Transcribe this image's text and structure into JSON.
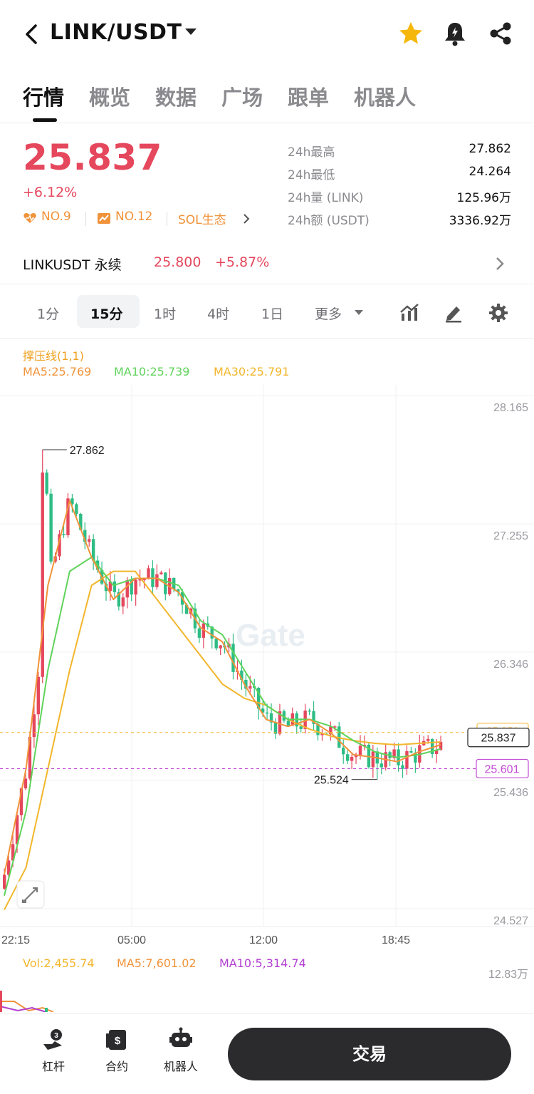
{
  "header": {
    "pair": "LINK/USDT",
    "icons": [
      "back-icon",
      "caret-down-icon",
      "star-icon",
      "alert-bell-icon",
      "share-icon"
    ],
    "favorite_color": "#f5b70a"
  },
  "tabs": [
    "行情",
    "概览",
    "数据",
    "广场",
    "跟单",
    "机器人"
  ],
  "ticker": {
    "price": "25.837",
    "change": "+6.12%",
    "rank1": "NO.9",
    "rank2": "NO.12",
    "ecosystem": "SOL生态",
    "stats": [
      {
        "label": "24h最高",
        "value": "27.862"
      },
      {
        "label": "24h最低",
        "value": "24.264"
      },
      {
        "label": "24h量 (LINK)",
        "value": "125.96万"
      },
      {
        "label": "24h额 (USDT)",
        "value": "3336.92万"
      }
    ]
  },
  "perpetual": {
    "name": "LINKUSDT 永续",
    "price": "25.800",
    "change": "+5.87%"
  },
  "intervals": {
    "items": [
      "1分",
      "15分",
      "1时",
      "4时",
      "1日",
      "更多"
    ],
    "active": "15分",
    "tools": [
      "indicator-icon",
      "draw-icon",
      "settings-icon"
    ]
  },
  "legend": {
    "indicator": "撑压线(1,1)",
    "ma5": "MA5:25.769",
    "ma10": "MA10:25.739",
    "ma30": "MA30:25.791"
  },
  "colors": {
    "up": "#e5475d",
    "down": "#2ebd85",
    "ma5": "#f0933a",
    "ma10": "#5fd35a",
    "ma30": "#f2b62b",
    "support": "#c24ad4",
    "watermark_text": "Gate"
  },
  "chart_data": {
    "type": "candlestick",
    "y_axis_labels": [
      "28.165",
      "27.255",
      "26.346",
      "25.436",
      "24.527"
    ],
    "ylim": [
      24.527,
      28.165
    ],
    "x_axis_labels": [
      "22:15",
      "05:00",
      "12:00",
      "18:45"
    ],
    "annotations": {
      "high": "27.862",
      "low": "25.524",
      "current_price": "25.837",
      "support_line": "25.601",
      "resistance_label_partial": "25.850"
    },
    "ma_series": {
      "ma5": [
        24.85,
        25.6,
        26.9,
        27.5,
        27.1,
        26.8,
        26.95,
        26.95,
        26.85,
        26.6,
        26.5,
        26.2,
        25.95,
        25.9,
        25.95,
        25.85,
        25.7,
        25.68,
        25.65,
        25.72,
        25.77
      ],
      "ma10": [
        24.7,
        25.3,
        26.3,
        27.0,
        27.1,
        26.9,
        26.95,
        26.95,
        26.9,
        26.65,
        26.55,
        26.3,
        26.05,
        25.95,
        25.95,
        25.9,
        25.8,
        25.72,
        25.68,
        25.7,
        25.74
      ],
      "ma30": [
        24.6,
        24.9,
        25.6,
        26.3,
        26.9,
        27.0,
        27.0,
        26.8,
        26.6,
        26.4,
        26.2,
        26.1,
        26.05,
        25.95,
        25.88,
        25.83,
        25.8,
        25.78,
        25.77,
        25.78,
        25.79
      ]
    },
    "volume": {
      "y_label": "12.83万",
      "vol": "Vol:2,455.74",
      "ma5": "MA5:7,601.02",
      "ma10": "MA10:5,314.74"
    }
  },
  "bottom_nav": {
    "items": [
      {
        "label": "杠杆",
        "icon": "leverage-icon"
      },
      {
        "label": "合约",
        "icon": "futures-icon"
      },
      {
        "label": "机器人",
        "icon": "robot-icon"
      }
    ],
    "trade": "交易"
  }
}
